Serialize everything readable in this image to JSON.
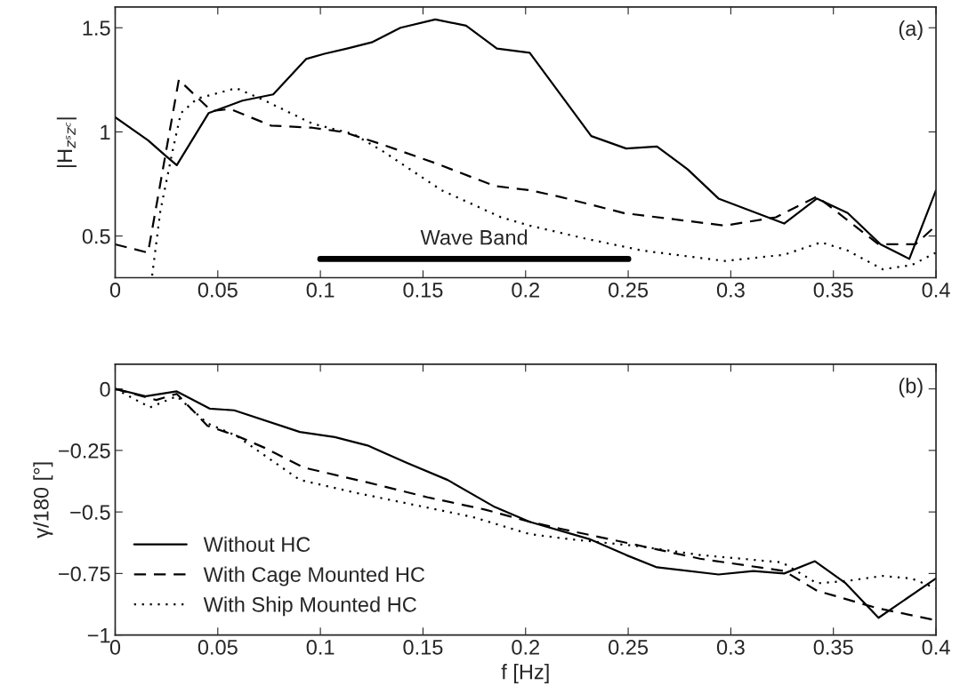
{
  "chart_data": [
    {
      "type": "line",
      "ylabel": "|H$_{zˢzᶜ}$|",
      "xlim": [
        0,
        0.4
      ],
      "ylim": [
        0.3,
        1.6
      ],
      "xticks": [
        0,
        0.05,
        0.1,
        0.15,
        0.2,
        0.25,
        0.3,
        0.35,
        0.4
      ],
      "yticks": [
        0.5,
        1,
        1.5
      ],
      "annotations": [
        "(a)",
        {
          "text": "Wave Band",
          "x": 0.175,
          "y": 0.39
        }
      ],
      "grid": false,
      "legend": false,
      "series": [
        {
          "color": "#000000",
          "line_style": "solid",
          "x": [
            0,
            0.016,
            0.024,
            0.03,
            0.0455,
            0.062,
            0.077,
            0.093,
            0.102,
            0.113,
            0.125,
            0.139,
            0.156,
            0.171,
            0.186,
            0.202,
            0.232,
            0.249,
            0.264,
            0.279,
            0.294,
            0.326,
            0.342,
            0.357,
            0.373,
            0.387,
            0.4
          ],
          "values": [
            1.07,
            0.96,
            0.89,
            0.84,
            1.09,
            1.15,
            1.18,
            1.35,
            1.375,
            1.4,
            1.43,
            1.5,
            1.54,
            1.51,
            1.4,
            1.38,
            0.98,
            0.92,
            0.93,
            0.82,
            0.68,
            0.56,
            0.68,
            0.61,
            0.46,
            0.39,
            0.72
          ]
        },
        {
          "color": "#000000",
          "line_style": "dashed",
          "x": [
            0,
            0.016,
            0.031,
            0.047,
            0.056,
            0.076,
            0.096,
            0.111,
            0.13,
            0.156,
            0.185,
            0.202,
            0.216,
            0.248,
            0.297,
            0.322,
            0.342,
            0.372,
            0.39,
            0.4
          ],
          "values": [
            0.46,
            0.42,
            1.25,
            1.1,
            1.11,
            1.03,
            1.02,
            1.0,
            0.94,
            0.85,
            0.74,
            0.72,
            0.69,
            0.61,
            0.55,
            0.59,
            0.69,
            0.46,
            0.46,
            0.55
          ]
        },
        {
          "color": "#000000",
          "line_style": "dotted",
          "x": [
            0.018,
            0.022,
            0.028,
            0.032,
            0.04,
            0.059,
            0.073,
            0.096,
            0.116,
            0.13,
            0.159,
            0.188,
            0.202,
            0.228,
            0.257,
            0.297,
            0.326,
            0.344,
            0.357,
            0.374,
            0.388,
            0.4
          ],
          "values": [
            0.31,
            0.62,
            0.91,
            1.09,
            1.16,
            1.21,
            1.15,
            1.04,
            0.99,
            0.91,
            0.72,
            0.59,
            0.55,
            0.49,
            0.43,
            0.38,
            0.41,
            0.47,
            0.43,
            0.34,
            0.36,
            0.42
          ]
        },
        {
          "color": "#000000",
          "line_style": "solid",
          "x": [
            0.1,
            0.25
          ],
          "values": [
            0.39,
            0.39
          ]
        }
      ]
    },
    {
      "type": "line",
      "xlabel": "f [Hz]",
      "ylabel": "γ/180 [°]",
      "xlim": [
        0,
        0.4
      ],
      "ylim": [
        -1,
        0.1
      ],
      "xticks": [
        0,
        0.05,
        0.1,
        0.15,
        0.2,
        0.25,
        0.3,
        0.35,
        0.4
      ],
      "yticks": [
        -1,
        -0.75,
        -0.5,
        -0.25,
        0
      ],
      "annotations": [
        "(b)"
      ],
      "grid": false,
      "legend": "bottom left",
      "series": [
        {
          "name": "Without HC",
          "color": "#000000",
          "line_style": "solid",
          "x": [
            0,
            0.015,
            0.03,
            0.046,
            0.058,
            0.09,
            0.107,
            0.123,
            0.142,
            0.162,
            0.185,
            0.202,
            0.231,
            0.249,
            0.264,
            0.294,
            0.311,
            0.326,
            0.341,
            0.356,
            0.372,
            0.4
          ],
          "values": [
            0,
            -0.03,
            -0.01,
            -0.08,
            -0.087,
            -0.175,
            -0.196,
            -0.23,
            -0.3,
            -0.37,
            -0.48,
            -0.54,
            -0.61,
            -0.675,
            -0.725,
            -0.754,
            -0.74,
            -0.75,
            -0.7,
            -0.79,
            -0.93,
            -0.77
          ]
        },
        {
          "name": "With Cage Mounted HC",
          "color": "#000000",
          "line_style": "dashed",
          "x": [
            0,
            0.02,
            0.03,
            0.045,
            0.059,
            0.073,
            0.092,
            0.123,
            0.152,
            0.18,
            0.202,
            0.218,
            0.249,
            0.285,
            0.326,
            0.342,
            0.371,
            0.4
          ],
          "values": [
            0,
            -0.045,
            -0.02,
            -0.15,
            -0.19,
            -0.24,
            -0.32,
            -0.38,
            -0.44,
            -0.49,
            -0.54,
            -0.57,
            -0.625,
            -0.69,
            -0.74,
            -0.82,
            -0.89,
            -0.94
          ]
        },
        {
          "name": "With Ship Mounted HC",
          "color": "#000000",
          "line_style": "dotted",
          "x": [
            0,
            0.017,
            0.03,
            0.045,
            0.059,
            0.09,
            0.116,
            0.145,
            0.174,
            0.202,
            0.221,
            0.256,
            0.285,
            0.325,
            0.342,
            0.357,
            0.374,
            0.388,
            0.4
          ],
          "values": [
            0,
            -0.075,
            -0.03,
            -0.14,
            -0.19,
            -0.37,
            -0.42,
            -0.47,
            -0.52,
            -0.59,
            -0.61,
            -0.64,
            -0.675,
            -0.705,
            -0.79,
            -0.78,
            -0.76,
            -0.77,
            -0.81
          ]
        }
      ]
    }
  ]
}
